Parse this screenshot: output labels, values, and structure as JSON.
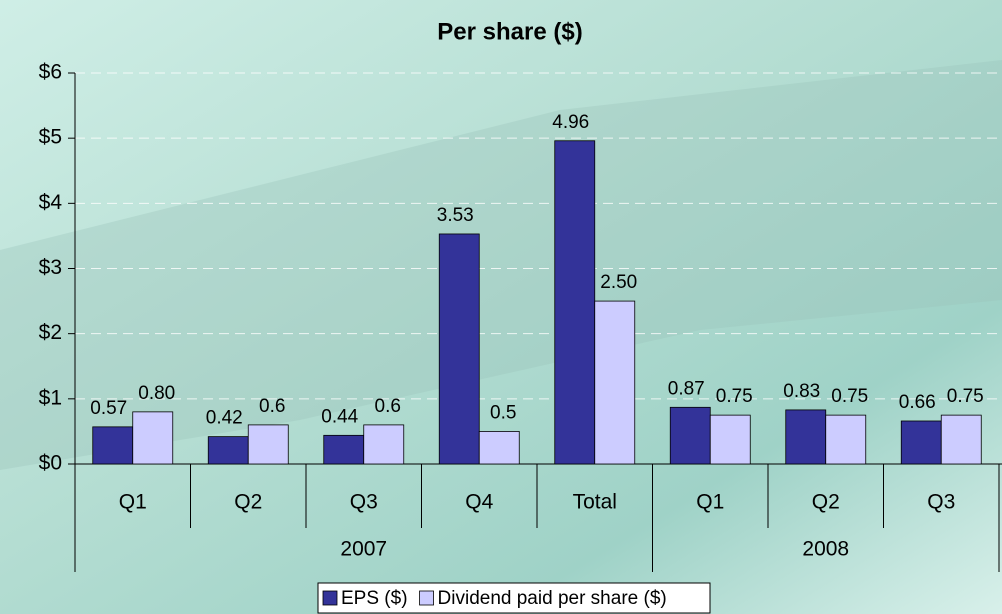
{
  "chart_data": {
    "type": "bar",
    "title": "Per share ($)",
    "categories": [
      "Q1",
      "Q2",
      "Q3",
      "Q4",
      "Total",
      "Q1",
      "Q2",
      "Q3"
    ],
    "groups": [
      {
        "label": "2007",
        "count": 5
      },
      {
        "label": "2008",
        "count": 3
      }
    ],
    "series": [
      {
        "name": "EPS ($)",
        "color": "#333399",
        "values": [
          0.57,
          0.42,
          0.44,
          3.53,
          4.96,
          0.87,
          0.83,
          0.66
        ],
        "value_labels": [
          "0.57",
          "0.42",
          "0.44",
          "3.53",
          "4.96",
          "0.87",
          "0.83",
          "0.66"
        ]
      },
      {
        "name": "Dividend paid per share ($)",
        "color": "#ccccff",
        "values": [
          0.8,
          0.6,
          0.6,
          0.5,
          2.5,
          0.75,
          0.75,
          0.75
        ],
        "value_labels": [
          "0.80",
          "0.6",
          "0.6",
          "0.5",
          "2.50",
          "0.75",
          "0.75",
          "0.75"
        ]
      }
    ],
    "ylim": [
      0,
      6
    ],
    "yticks": [
      {
        "value": 0,
        "label": "$0"
      },
      {
        "value": 1,
        "label": "$1"
      },
      {
        "value": 2,
        "label": "$2"
      },
      {
        "value": 3,
        "label": "$3"
      },
      {
        "value": 4,
        "label": "$4"
      },
      {
        "value": 5,
        "label": "$5"
      },
      {
        "value": 6,
        "label": "$6"
      }
    ],
    "grid": true,
    "legend": "bottom"
  }
}
